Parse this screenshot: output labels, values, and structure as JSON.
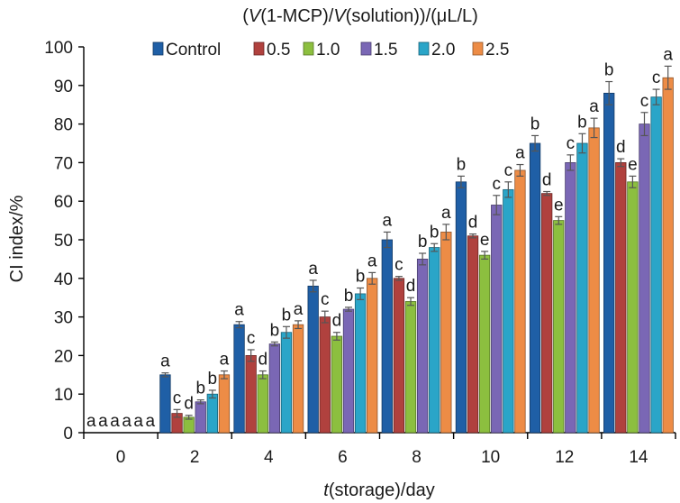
{
  "chart_data": {
    "type": "bar",
    "title": "(V(1-MCP)/V(solution))/(μL/L)",
    "title_parts": [
      "(",
      "V",
      "(1-MCP)/",
      "V",
      "(solution))/(μL/L)"
    ],
    "xlabel": "t(storage)/day",
    "xlabel_parts": [
      "t",
      "(storage)/day"
    ],
    "ylabel": "CI index/%",
    "ylim": [
      0,
      100
    ],
    "yticks": [
      0,
      10,
      20,
      30,
      40,
      50,
      60,
      70,
      80,
      90,
      100
    ],
    "categories": [
      "0",
      "2",
      "4",
      "6",
      "8",
      "10",
      "12",
      "14"
    ],
    "legend_position": "top",
    "grid": false,
    "series": [
      {
        "name": "Control",
        "color": "#1f5fa6",
        "values": [
          0,
          15,
          28,
          38,
          50,
          65,
          75,
          88
        ],
        "errors": [
          0,
          0.5,
          0.8,
          1.5,
          2,
          1.5,
          2,
          3
        ],
        "letters": [
          "a",
          "a",
          "a",
          "a",
          "a",
          "b",
          "b",
          "b"
        ]
      },
      {
        "name": "0.5",
        "color": "#b0413e",
        "values": [
          0,
          5,
          20,
          30,
          40,
          51,
          62,
          70
        ],
        "errors": [
          0,
          1,
          1.5,
          1.5,
          0.5,
          0.5,
          0.5,
          1
        ],
        "letters": [
          "a",
          "c",
          "c",
          "c",
          "c",
          "d",
          "d",
          "d"
        ]
      },
      {
        "name": "1.0",
        "color": "#8cbf3f",
        "values": [
          0,
          4,
          15,
          25,
          34,
          46,
          55,
          65
        ],
        "errors": [
          0,
          0.5,
          1,
          1,
          1,
          1,
          1,
          1.5
        ],
        "letters": [
          "a",
          "d",
          "d",
          "d",
          "d",
          "e",
          "e",
          "e"
        ]
      },
      {
        "name": "1.5",
        "color": "#7a67b5",
        "values": [
          0,
          8,
          23,
          32,
          45,
          59,
          70,
          80
        ],
        "errors": [
          0,
          0.5,
          0.5,
          0.5,
          1.5,
          2.5,
          2,
          3
        ],
        "letters": [
          "a",
          "b",
          "b",
          "b",
          "b",
          "c",
          "c",
          "c"
        ]
      },
      {
        "name": "2.0",
        "color": "#2aa5c8",
        "values": [
          0,
          10,
          26,
          36,
          48,
          63,
          75,
          87
        ],
        "errors": [
          0,
          1,
          1.5,
          1.5,
          1,
          2,
          2.5,
          2
        ],
        "letters": [
          "a",
          "b",
          "b",
          "b",
          "b",
          "c",
          "b",
          "c"
        ]
      },
      {
        "name": "2.5",
        "color": "#ed8c46",
        "values": [
          0,
          15,
          28,
          40,
          52,
          68,
          79,
          92
        ],
        "errors": [
          0,
          1,
          1,
          1.5,
          2,
          1.5,
          2.5,
          3
        ],
        "letters": [
          "a",
          "a",
          "a",
          "a",
          "a",
          "a",
          "a",
          "a"
        ]
      }
    ]
  }
}
